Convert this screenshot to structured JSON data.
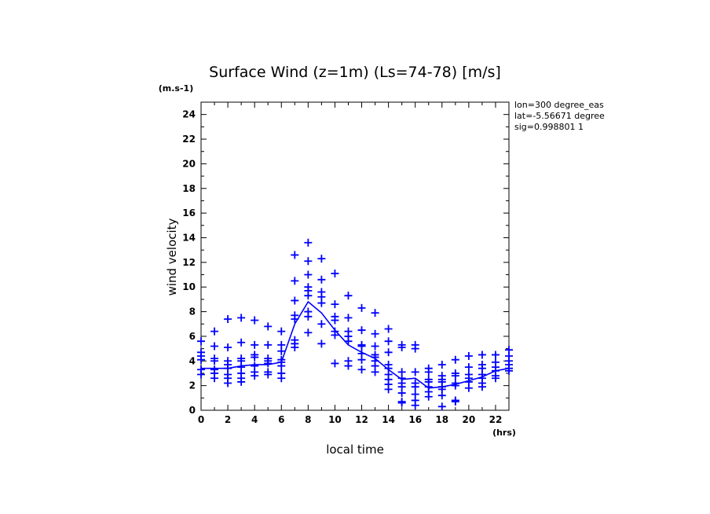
{
  "chart_data": {
    "type": "scatter",
    "title": "Surface Wind (z=1m) (Ls=74-78) [m/s]",
    "ylabel": "wind velocity",
    "xlabel": "local time",
    "y_unit": "(m.s-1)",
    "x_unit": "(hrs)",
    "info": [
      "lon=300 degree_eas",
      "lat=-5.56671 degree",
      "sig=0.998801 1"
    ],
    "xlim": [
      0,
      23
    ],
    "ylim": [
      0,
      25
    ],
    "x_ticks": [
      0,
      2,
      4,
      6,
      8,
      10,
      12,
      14,
      16,
      18,
      20,
      22
    ],
    "y_ticks": [
      0,
      2,
      4,
      6,
      8,
      10,
      12,
      14,
      16,
      18,
      20,
      22,
      24
    ],
    "grid": false,
    "color": "#0000ff",
    "series": [
      {
        "marker": "plus",
        "points": [
          [
            0,
            5.6
          ],
          [
            0,
            4.7
          ],
          [
            0,
            4.4
          ],
          [
            0,
            4.1
          ],
          [
            0,
            3.3
          ],
          [
            0,
            2.9
          ],
          [
            1,
            6.4
          ],
          [
            1,
            5.2
          ],
          [
            1,
            4.2
          ],
          [
            1,
            4.0
          ],
          [
            1,
            3.3
          ],
          [
            1,
            3.0
          ],
          [
            1,
            2.6
          ],
          [
            2,
            7.4
          ],
          [
            2,
            5.1
          ],
          [
            2,
            4.0
          ],
          [
            2,
            3.7
          ],
          [
            2,
            3.4
          ],
          [
            2,
            2.9
          ],
          [
            2,
            2.6
          ],
          [
            2,
            2.2
          ],
          [
            3,
            7.5
          ],
          [
            3,
            5.5
          ],
          [
            3,
            4.2
          ],
          [
            3,
            4.0
          ],
          [
            3,
            3.5
          ],
          [
            3,
            3.0
          ],
          [
            3,
            2.6
          ],
          [
            3,
            2.3
          ],
          [
            4,
            7.3
          ],
          [
            4,
            5.3
          ],
          [
            4,
            4.5
          ],
          [
            4,
            4.3
          ],
          [
            4,
            3.6
          ],
          [
            4,
            3.1
          ],
          [
            4,
            2.8
          ],
          [
            5,
            6.8
          ],
          [
            5,
            5.3
          ],
          [
            5,
            4.2
          ],
          [
            5,
            4.0
          ],
          [
            5,
            3.8
          ],
          [
            5,
            3.1
          ],
          [
            5,
            2.9
          ],
          [
            6,
            6.4
          ],
          [
            6,
            5.3
          ],
          [
            6,
            4.8
          ],
          [
            6,
            4.1
          ],
          [
            6,
            3.9
          ],
          [
            6,
            3.6
          ],
          [
            6,
            3.0
          ],
          [
            6,
            2.6
          ],
          [
            7,
            12.6
          ],
          [
            7,
            10.5
          ],
          [
            7,
            8.9
          ],
          [
            7,
            7.7
          ],
          [
            7,
            7.4
          ],
          [
            7,
            5.7
          ],
          [
            7,
            5.4
          ],
          [
            7,
            5.1
          ],
          [
            8,
            13.6
          ],
          [
            8,
            12.1
          ],
          [
            8,
            11.0
          ],
          [
            8,
            10.0
          ],
          [
            8,
            9.7
          ],
          [
            8,
            9.3
          ],
          [
            8,
            8.0
          ],
          [
            8,
            7.6
          ],
          [
            8,
            6.3
          ],
          [
            9,
            12.3
          ],
          [
            9,
            10.6
          ],
          [
            9,
            9.6
          ],
          [
            9,
            9.2
          ],
          [
            9,
            8.7
          ],
          [
            9,
            7.0
          ],
          [
            9,
            5.4
          ],
          [
            10,
            11.1
          ],
          [
            10,
            8.6
          ],
          [
            10,
            7.6
          ],
          [
            10,
            7.3
          ],
          [
            10,
            6.4
          ],
          [
            10,
            6.1
          ],
          [
            10,
            3.8
          ],
          [
            11,
            9.3
          ],
          [
            11,
            7.5
          ],
          [
            11,
            6.4
          ],
          [
            11,
            6.0
          ],
          [
            11,
            5.6
          ],
          [
            11,
            4.0
          ],
          [
            11,
            3.6
          ],
          [
            12,
            8.3
          ],
          [
            12,
            6.5
          ],
          [
            12,
            5.3
          ],
          [
            12,
            5.2
          ],
          [
            12,
            4.6
          ],
          [
            12,
            4.1
          ],
          [
            12,
            3.3
          ],
          [
            13,
            7.9
          ],
          [
            13,
            6.2
          ],
          [
            13,
            5.2
          ],
          [
            13,
            4.5
          ],
          [
            13,
            4.3
          ],
          [
            13,
            4.0
          ],
          [
            13,
            3.6
          ],
          [
            13,
            3.1
          ],
          [
            14,
            6.6
          ],
          [
            14,
            5.6
          ],
          [
            14,
            4.7
          ],
          [
            14,
            3.7
          ],
          [
            14,
            3.4
          ],
          [
            14,
            2.9
          ],
          [
            14,
            2.5
          ],
          [
            14,
            2.1
          ],
          [
            14,
            1.7
          ],
          [
            15,
            5.3
          ],
          [
            15,
            5.1
          ],
          [
            15,
            3.1
          ],
          [
            15,
            2.6
          ],
          [
            15,
            2.2
          ],
          [
            15,
            1.9
          ],
          [
            15,
            1.4
          ],
          [
            15,
            0.7
          ],
          [
            15,
            0.6
          ],
          [
            16,
            5.3
          ],
          [
            16,
            5.0
          ],
          [
            16,
            3.1
          ],
          [
            16,
            2.2
          ],
          [
            16,
            1.9
          ],
          [
            16,
            1.3
          ],
          [
            16,
            0.8
          ],
          [
            16,
            0.4
          ],
          [
            17,
            3.4
          ],
          [
            17,
            3.1
          ],
          [
            17,
            2.5
          ],
          [
            17,
            2.3
          ],
          [
            17,
            1.9
          ],
          [
            17,
            1.5
          ],
          [
            17,
            1.1
          ],
          [
            18,
            3.7
          ],
          [
            18,
            2.8
          ],
          [
            18,
            2.5
          ],
          [
            18,
            2.3
          ],
          [
            18,
            1.9
          ],
          [
            18,
            1.7
          ],
          [
            18,
            1.2
          ],
          [
            18,
            0.3
          ],
          [
            19,
            4.1
          ],
          [
            19,
            3.0
          ],
          [
            19,
            2.8
          ],
          [
            19,
            2.2
          ],
          [
            19,
            2.0
          ],
          [
            19,
            0.8
          ],
          [
            19,
            0.7
          ],
          [
            20,
            4.4
          ],
          [
            20,
            3.5
          ],
          [
            20,
            2.9
          ],
          [
            20,
            2.6
          ],
          [
            20,
            2.3
          ],
          [
            20,
            1.8
          ],
          [
            21,
            4.5
          ],
          [
            21,
            3.7
          ],
          [
            21,
            3.4
          ],
          [
            21,
            2.9
          ],
          [
            21,
            2.6
          ],
          [
            21,
            2.2
          ],
          [
            21,
            1.9
          ],
          [
            22,
            4.5
          ],
          [
            22,
            3.9
          ],
          [
            22,
            3.5
          ],
          [
            22,
            3.2
          ],
          [
            22,
            2.8
          ],
          [
            22,
            2.6
          ],
          [
            23,
            4.9
          ],
          [
            23,
            4.4
          ],
          [
            23,
            4.0
          ],
          [
            23,
            3.7
          ],
          [
            23,
            3.4
          ],
          [
            23,
            3.2
          ]
        ]
      },
      {
        "marker": "line",
        "x": [
          0,
          1,
          2,
          3,
          4,
          5,
          6,
          7,
          8,
          9,
          10,
          11,
          12,
          13,
          14,
          15,
          16,
          17,
          18,
          19,
          20,
          21,
          22,
          23
        ],
        "y": [
          3.4,
          3.4,
          3.4,
          3.6,
          3.7,
          3.7,
          3.9,
          7.0,
          8.8,
          7.9,
          6.5,
          5.3,
          4.7,
          4.2,
          3.3,
          2.5,
          2.6,
          1.8,
          1.9,
          2.1,
          2.4,
          2.7,
          3.2,
          3.4
        ]
      }
    ]
  }
}
